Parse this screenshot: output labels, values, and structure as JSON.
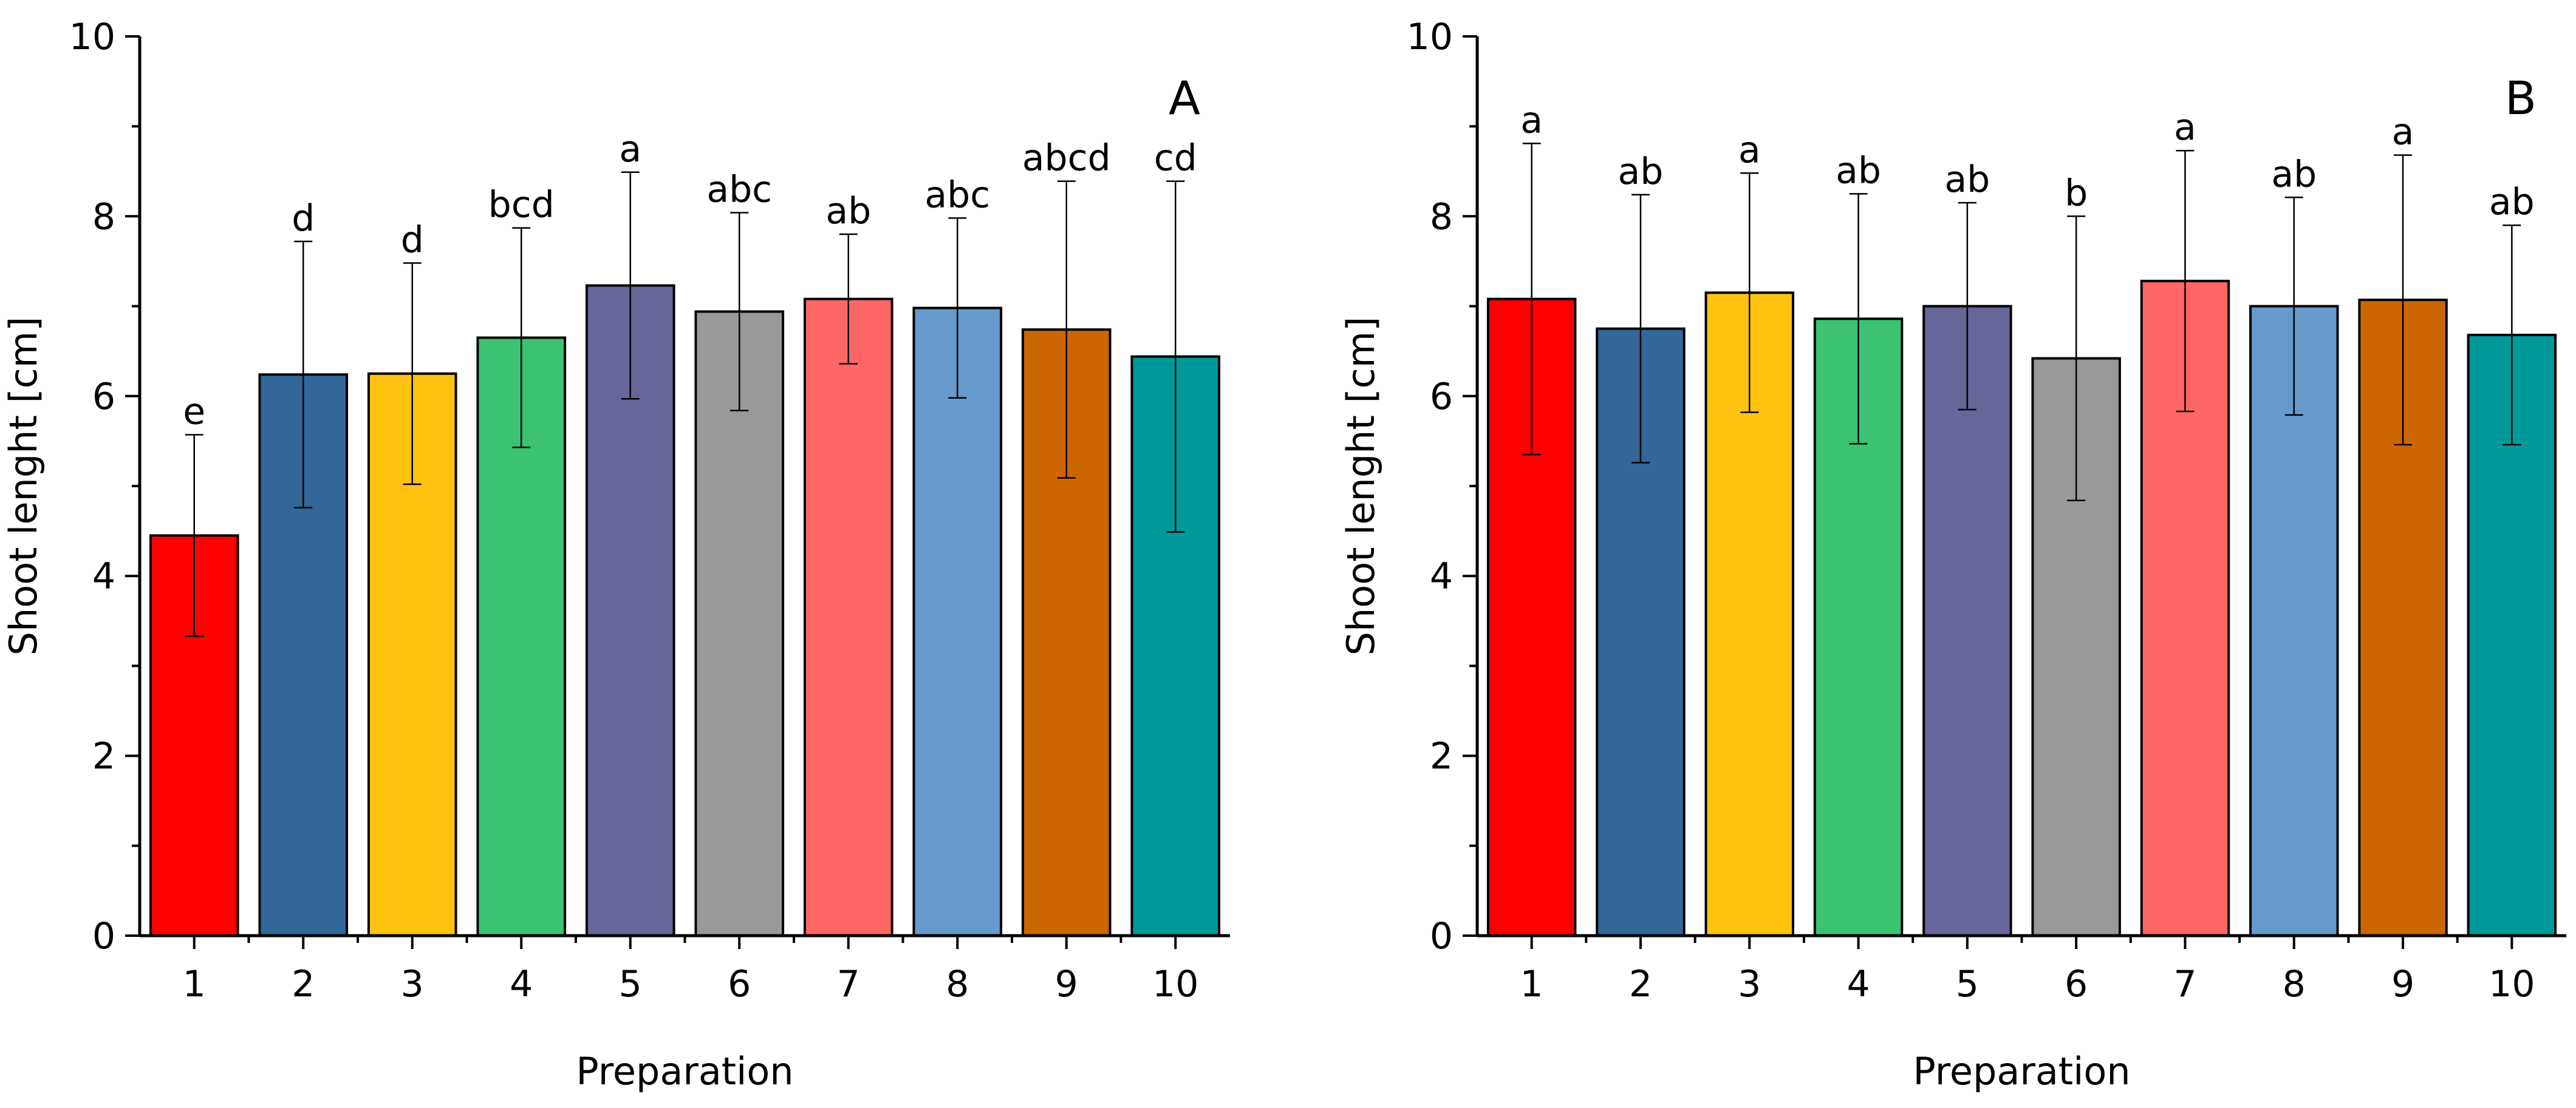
{
  "chart_data": [
    {
      "type": "bar",
      "panel_label": "A",
      "xlabel": "Preparation",
      "ylabel": "Shoot lenght [cm]",
      "ylim": [
        0,
        10
      ],
      "yticks": [
        "0",
        "2",
        "4",
        "6",
        "8",
        "10"
      ],
      "categories": [
        "1",
        "2",
        "3",
        "4",
        "5",
        "6",
        "7",
        "8",
        "9",
        "10"
      ],
      "values": [
        4.45,
        6.24,
        6.25,
        6.65,
        7.23,
        6.94,
        7.08,
        6.98,
        6.74,
        6.44
      ],
      "errors": [
        1.12,
        1.48,
        1.23,
        1.22,
        1.26,
        1.1,
        0.72,
        1.0,
        1.65,
        1.95
      ],
      "labels": [
        "e",
        "d",
        "d",
        "bcd",
        "a",
        "abc",
        "ab",
        "abc",
        "abcd",
        "cd"
      ],
      "colors": [
        "#FF0000",
        "#336699",
        "#FFC211",
        "#3CC372",
        "#666699",
        "#999999",
        "#FF6666",
        "#6699CC",
        "#CC6600",
        "#009999"
      ]
    },
    {
      "type": "bar",
      "panel_label": "B",
      "xlabel": "Preparation",
      "ylabel": "Shoot lenght [cm]",
      "ylim": [
        0,
        10
      ],
      "yticks": [
        "0",
        "2",
        "4",
        "6",
        "8",
        "10"
      ],
      "categories": [
        "1",
        "2",
        "3",
        "4",
        "5",
        "6",
        "7",
        "8",
        "9",
        "10"
      ],
      "values": [
        7.08,
        6.75,
        7.15,
        6.86,
        7.0,
        6.42,
        7.28,
        7.0,
        7.07,
        6.68
      ],
      "errors": [
        1.73,
        1.49,
        1.33,
        1.39,
        1.15,
        1.58,
        1.45,
        1.21,
        1.61,
        1.22
      ],
      "labels": [
        "a",
        "ab",
        "a",
        "ab",
        "ab",
        "b",
        "a",
        "ab",
        "a",
        "ab"
      ],
      "colors": [
        "#FF0000",
        "#336699",
        "#FFC211",
        "#3CC372",
        "#666699",
        "#999999",
        "#FF6666",
        "#6699CC",
        "#CC6600",
        "#009999"
      ]
    }
  ]
}
